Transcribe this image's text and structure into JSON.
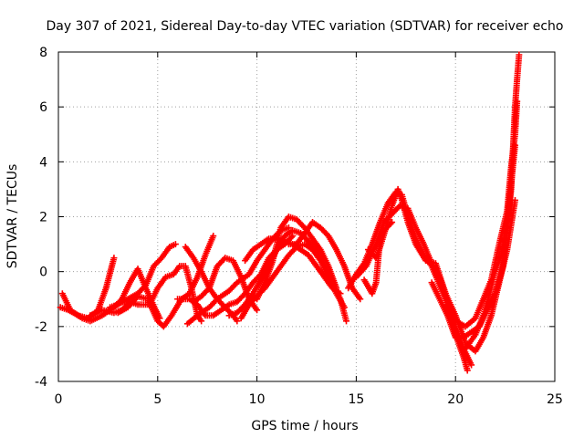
{
  "chart_data": {
    "type": "scatter",
    "title": "Day 307 of 2021, Sidereal Day-to-day VTEC variation (SDTVAR) for receiver echo",
    "xlabel": "GPS time / hours",
    "ylabel": "SDTVAR / TECUs",
    "xlim": [
      0,
      25
    ],
    "ylim": [
      -4,
      8
    ],
    "x_ticks": [
      "0",
      "5",
      "10",
      "15",
      "20",
      "25"
    ],
    "y_ticks": [
      "-4",
      "-2",
      "0",
      "2",
      "4",
      "6",
      "8"
    ],
    "grid": true,
    "legend": "none",
    "marker": "+",
    "color": "#ff0000",
    "series": [
      {
        "points": [
          [
            0.1,
            -1.3
          ],
          [
            0.5,
            -1.4
          ],
          [
            1.0,
            -1.6
          ],
          [
            1.5,
            -1.7
          ],
          [
            2.0,
            -1.4
          ],
          [
            2.4,
            -0.6
          ],
          [
            2.8,
            0.5
          ]
        ]
      },
      {
        "points": [
          [
            0.2,
            -0.8
          ],
          [
            0.6,
            -1.4
          ],
          [
            1.2,
            -1.7
          ],
          [
            1.6,
            -1.8
          ],
          [
            2.2,
            -1.6
          ],
          [
            2.8,
            -1.3
          ],
          [
            3.2,
            -1.0
          ],
          [
            3.6,
            -0.4
          ],
          [
            4.0,
            0.1
          ],
          [
            4.4,
            -0.6
          ],
          [
            4.9,
            -1.4
          ],
          [
            5.1,
            -1.7
          ]
        ]
      },
      {
        "points": [
          [
            1.6,
            -1.6
          ],
          [
            2.2,
            -1.4
          ],
          [
            2.8,
            -1.5
          ],
          [
            3.2,
            -1.4
          ],
          [
            3.6,
            -1.1
          ],
          [
            4.0,
            -1.2
          ],
          [
            4.6,
            -1.2
          ],
          [
            5.0,
            -0.6
          ],
          [
            5.4,
            -0.2
          ],
          [
            5.8,
            -0.1
          ],
          [
            6.1,
            0.2
          ],
          [
            6.4,
            0.2
          ],
          [
            6.7,
            -0.6
          ],
          [
            7.0,
            -1.6
          ],
          [
            7.2,
            -1.8
          ]
        ]
      },
      {
        "points": [
          [
            2.6,
            -1.3
          ],
          [
            3.0,
            -1.2
          ],
          [
            3.5,
            -1.0
          ],
          [
            4.0,
            -0.8
          ],
          [
            4.4,
            -0.5
          ],
          [
            4.8,
            0.2
          ],
          [
            5.2,
            0.5
          ],
          [
            5.6,
            0.9
          ],
          [
            5.9,
            1.0
          ]
        ]
      },
      {
        "points": [
          [
            3.0,
            -1.5
          ],
          [
            3.5,
            -1.3
          ],
          [
            4.0,
            -0.9
          ],
          [
            4.5,
            -1.0
          ],
          [
            5.0,
            -1.8
          ],
          [
            5.3,
            -2.0
          ],
          [
            5.7,
            -1.6
          ],
          [
            6.2,
            -1.0
          ],
          [
            6.6,
            -0.8
          ],
          [
            7.0,
            -0.2
          ],
          [
            7.4,
            0.6
          ],
          [
            7.8,
            1.3
          ]
        ]
      },
      {
        "points": [
          [
            6.4,
            0.9
          ],
          [
            6.8,
            0.5
          ],
          [
            7.2,
            0.0
          ],
          [
            7.6,
            -0.6
          ],
          [
            8.0,
            -1.0
          ],
          [
            8.4,
            -1.3
          ],
          [
            8.8,
            -1.6
          ],
          [
            9.0,
            -1.8
          ]
        ]
      },
      {
        "points": [
          [
            6.8,
            -1.1
          ],
          [
            7.2,
            -0.9
          ],
          [
            7.6,
            -0.6
          ],
          [
            8.0,
            0.2
          ],
          [
            8.4,
            0.5
          ],
          [
            8.8,
            0.4
          ],
          [
            9.2,
            -0.2
          ],
          [
            9.6,
            -1.0
          ],
          [
            10.0,
            -1.4
          ]
        ]
      },
      {
        "points": [
          [
            6.0,
            -1.0
          ],
          [
            6.6,
            -1.0
          ],
          [
            7.0,
            -1.2
          ],
          [
            7.4,
            -1.6
          ],
          [
            7.8,
            -1.6
          ],
          [
            8.2,
            -1.4
          ],
          [
            8.6,
            -1.2
          ],
          [
            9.0,
            -1.1
          ],
          [
            9.4,
            -0.8
          ],
          [
            9.8,
            -0.4
          ],
          [
            10.2,
            -0.1
          ],
          [
            10.6,
            0.5
          ],
          [
            11.0,
            0.8
          ],
          [
            11.4,
            1.0
          ],
          [
            11.8,
            1.3
          ]
        ]
      },
      {
        "points": [
          [
            6.5,
            -1.9
          ],
          [
            7.0,
            -1.6
          ],
          [
            7.6,
            -1.3
          ],
          [
            8.0,
            -1.0
          ],
          [
            8.6,
            -0.7
          ],
          [
            9.0,
            -0.4
          ],
          [
            9.6,
            -0.1
          ],
          [
            10.0,
            0.4
          ],
          [
            10.4,
            0.8
          ],
          [
            10.8,
            1.2
          ],
          [
            11.2,
            1.5
          ],
          [
            11.6,
            1.6
          ]
        ]
      },
      {
        "points": [
          [
            8.6,
            -1.6
          ],
          [
            9.0,
            -1.5
          ],
          [
            9.4,
            -1.2
          ],
          [
            9.8,
            -0.8
          ],
          [
            10.2,
            -0.3
          ],
          [
            10.6,
            0.2
          ],
          [
            11.0,
            0.8
          ],
          [
            11.4,
            1.3
          ],
          [
            11.8,
            1.5
          ],
          [
            12.2,
            1.4
          ],
          [
            12.6,
            1.1
          ],
          [
            13.0,
            0.8
          ],
          [
            13.4,
            0.2
          ],
          [
            13.8,
            -0.4
          ],
          [
            14.2,
            -1.0
          ],
          [
            14.5,
            -1.8
          ]
        ]
      },
      {
        "points": [
          [
            9.2,
            -1.7
          ],
          [
            9.6,
            -1.2
          ],
          [
            10.0,
            -0.9
          ],
          [
            10.4,
            -0.6
          ],
          [
            10.8,
            -0.2
          ],
          [
            11.2,
            0.2
          ],
          [
            11.6,
            0.6
          ],
          [
            12.0,
            0.9
          ],
          [
            12.4,
            1.0
          ],
          [
            12.8,
            0.8
          ],
          [
            13.2,
            0.4
          ],
          [
            13.6,
            -0.2
          ],
          [
            14.0,
            -0.8
          ],
          [
            14.4,
            -1.3
          ]
        ]
      },
      {
        "points": [
          [
            10.0,
            -1.0
          ],
          [
            10.4,
            -0.4
          ],
          [
            10.8,
            0.4
          ],
          [
            11.0,
            1.0
          ],
          [
            11.2,
            1.6
          ],
          [
            11.6,
            2.0
          ],
          [
            12.0,
            1.9
          ],
          [
            12.4,
            1.6
          ],
          [
            12.8,
            1.2
          ],
          [
            13.2,
            0.8
          ],
          [
            13.6,
            0.2
          ],
          [
            14.0,
            -0.6
          ]
        ]
      },
      {
        "points": [
          [
            9.4,
            0.4
          ],
          [
            9.8,
            0.8
          ],
          [
            10.2,
            1.0
          ],
          [
            10.6,
            1.2
          ],
          [
            11.0,
            1.2
          ],
          [
            11.4,
            1.1
          ],
          [
            11.8,
            1.0
          ],
          [
            12.2,
            0.8
          ],
          [
            12.6,
            0.6
          ],
          [
            13.0,
            0.2
          ],
          [
            13.4,
            -0.2
          ],
          [
            13.8,
            -0.6
          ],
          [
            14.2,
            -0.8
          ]
        ]
      },
      {
        "points": [
          [
            11.6,
            1.0
          ],
          [
            12.0,
            1.0
          ],
          [
            12.4,
            1.4
          ],
          [
            12.8,
            1.8
          ],
          [
            13.2,
            1.6
          ],
          [
            13.6,
            1.3
          ],
          [
            14.0,
            0.8
          ],
          [
            14.4,
            0.2
          ],
          [
            14.8,
            -0.6
          ],
          [
            15.2,
            -1.0
          ]
        ]
      },
      {
        "points": [
          [
            14.6,
            -0.6
          ],
          [
            15.0,
            -0.1
          ],
          [
            15.4,
            0.3
          ],
          [
            15.8,
            1.0
          ],
          [
            16.2,
            1.8
          ],
          [
            16.6,
            2.5
          ],
          [
            17.0,
            2.9
          ],
          [
            17.3,
            2.8
          ],
          [
            17.6,
            2.0
          ],
          [
            18.0,
            1.2
          ],
          [
            18.4,
            0.6
          ],
          [
            18.8,
            0.2
          ],
          [
            19.2,
            -0.5
          ],
          [
            19.6,
            -1.2
          ],
          [
            20.0,
            -2.3
          ],
          [
            20.4,
            -3.1
          ],
          [
            20.6,
            -3.6
          ]
        ]
      },
      {
        "points": [
          [
            15.0,
            -0.2
          ],
          [
            15.5,
            0.2
          ],
          [
            16.0,
            1.0
          ],
          [
            16.4,
            1.8
          ],
          [
            16.8,
            2.1
          ],
          [
            17.2,
            2.4
          ],
          [
            17.6,
            2.3
          ],
          [
            18.0,
            1.6
          ],
          [
            18.4,
            1.0
          ],
          [
            18.8,
            0.3
          ],
          [
            19.2,
            -0.2
          ],
          [
            19.6,
            -1.0
          ],
          [
            20.0,
            -2.0
          ],
          [
            20.4,
            -2.8
          ],
          [
            20.8,
            -3.4
          ]
        ]
      },
      {
        "points": [
          [
            15.6,
            0.8
          ],
          [
            16.0,
            0.5
          ],
          [
            16.2,
            0.9
          ],
          [
            16.5,
            1.6
          ],
          [
            16.8,
            2.4
          ],
          [
            17.1,
            3.0
          ],
          [
            17.3,
            2.6
          ],
          [
            17.6,
            1.8
          ],
          [
            18.0,
            1.0
          ],
          [
            18.5,
            0.4
          ],
          [
            19.0,
            0.3
          ],
          [
            19.5,
            -0.8
          ],
          [
            20.0,
            -1.6
          ],
          [
            20.5,
            -2.6
          ],
          [
            21.0,
            -2.9
          ],
          [
            21.4,
            -2.4
          ],
          [
            21.8,
            -1.6
          ],
          [
            22.2,
            -0.4
          ],
          [
            22.6,
            0.8
          ],
          [
            23.0,
            2.6
          ]
        ]
      },
      {
        "points": [
          [
            15.4,
            -0.3
          ],
          [
            15.8,
            -0.8
          ],
          [
            16.0,
            -0.4
          ],
          [
            16.2,
            1.2
          ],
          [
            16.4,
            1.5
          ],
          [
            16.8,
            1.8
          ]
        ]
      },
      {
        "points": [
          [
            18.8,
            -0.4
          ],
          [
            19.2,
            -1.0
          ],
          [
            19.6,
            -1.6
          ],
          [
            20.0,
            -2.4
          ],
          [
            20.4,
            -2.4
          ],
          [
            20.8,
            -2.2
          ],
          [
            21.2,
            -2.0
          ],
          [
            21.6,
            -1.4
          ],
          [
            22.0,
            -0.8
          ],
          [
            22.4,
            0.2
          ],
          [
            22.6,
            1.5
          ],
          [
            22.8,
            3.0
          ],
          [
            22.9,
            4.5
          ],
          [
            23.0,
            6.0
          ],
          [
            23.1,
            7.0
          ],
          [
            23.2,
            7.9
          ]
        ]
      },
      {
        "points": [
          [
            19.5,
            -1.2
          ],
          [
            20.0,
            -1.8
          ],
          [
            20.5,
            -2.0
          ],
          [
            21.0,
            -1.7
          ],
          [
            21.4,
            -1.0
          ],
          [
            21.8,
            -0.3
          ],
          [
            22.2,
            1.0
          ],
          [
            22.6,
            2.2
          ],
          [
            22.8,
            3.8
          ],
          [
            23.0,
            5.0
          ],
          [
            23.1,
            6.2
          ]
        ]
      },
      {
        "points": [
          [
            20.5,
            -2.8
          ],
          [
            21.0,
            -2.3
          ],
          [
            21.4,
            -1.6
          ],
          [
            21.8,
            -0.6
          ],
          [
            22.0,
            0.0
          ],
          [
            22.3,
            0.6
          ],
          [
            22.6,
            1.8
          ],
          [
            22.8,
            3.2
          ],
          [
            23.0,
            4.6
          ]
        ]
      }
    ]
  }
}
